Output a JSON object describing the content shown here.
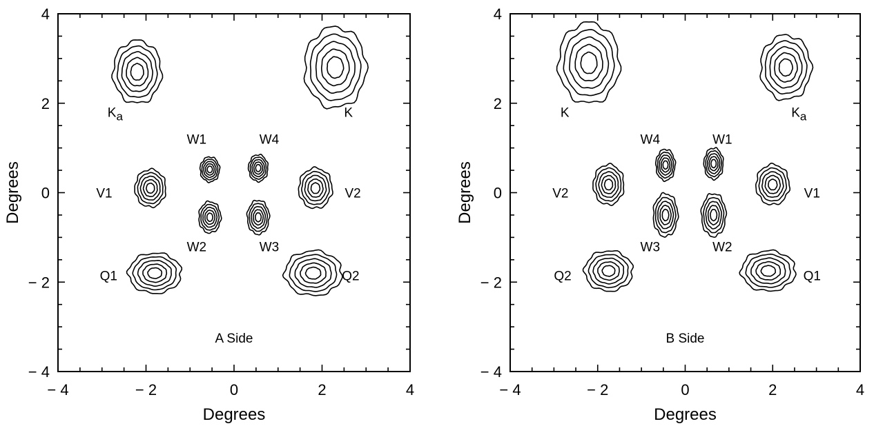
{
  "chart_data": [
    {
      "type": "contour",
      "side_label": "A Side",
      "xlabel": "Degrees",
      "ylabel": "Degrees",
      "xlim": [
        -4,
        4
      ],
      "ylim": [
        -4,
        4
      ],
      "x_ticks": [
        {
          "value": -4,
          "label": "− 4"
        },
        {
          "value": -2,
          "label": "− 2"
        },
        {
          "value": 0,
          "label": "0"
        },
        {
          "value": 2,
          "label": "2"
        },
        {
          "value": 4,
          "label": "4"
        }
      ],
      "y_ticks": [
        {
          "value": -4,
          "label": "− 4"
        },
        {
          "value": -2,
          "label": "− 2"
        },
        {
          "value": 0,
          "label": "0"
        },
        {
          "value": 2,
          "label": "2"
        },
        {
          "value": 4,
          "label": "4"
        }
      ],
      "beams": [
        {
          "name": "Ka",
          "label": "K",
          "subscript": "a",
          "x": -2.2,
          "y": 2.7,
          "rx": 0.55,
          "ry": 0.7,
          "rings": 5,
          "label_x": -2.7,
          "label_y": 1.8
        },
        {
          "name": "K",
          "label": "K",
          "x": 2.3,
          "y": 2.8,
          "rx": 0.7,
          "ry": 0.9,
          "rings": 5,
          "label_x": 2.6,
          "label_y": 1.8
        },
        {
          "name": "W1",
          "label": "W1",
          "x": -0.55,
          "y": 0.52,
          "rx": 0.22,
          "ry": 0.28,
          "rings": 5,
          "label_x": -0.85,
          "label_y": 1.2
        },
        {
          "name": "W4",
          "label": "W4",
          "x": 0.55,
          "y": 0.55,
          "rx": 0.22,
          "ry": 0.3,
          "rings": 5,
          "label_x": 0.8,
          "label_y": 1.2
        },
        {
          "name": "V1",
          "label": "V1",
          "x": -1.9,
          "y": 0.1,
          "rx": 0.35,
          "ry": 0.42,
          "rings": 5,
          "label_x": -2.95,
          "label_y": 0.0
        },
        {
          "name": "V2",
          "label": "V2",
          "x": 1.85,
          "y": 0.1,
          "rx": 0.38,
          "ry": 0.45,
          "rings": 5,
          "label_x": 2.7,
          "label_y": 0.0
        },
        {
          "name": "W2",
          "label": "W2",
          "x": -0.55,
          "y": -0.55,
          "rx": 0.25,
          "ry": 0.35,
          "rings": 5,
          "label_x": -0.85,
          "label_y": -1.2
        },
        {
          "name": "W3",
          "label": "W3",
          "x": 0.55,
          "y": -0.55,
          "rx": 0.25,
          "ry": 0.38,
          "rings": 5,
          "label_x": 0.8,
          "label_y": -1.2
        },
        {
          "name": "Q1",
          "label": "Q1",
          "x": -1.8,
          "y": -1.8,
          "rx": 0.6,
          "ry": 0.45,
          "rings": 5,
          "label_x": -2.85,
          "label_y": -1.85
        },
        {
          "name": "Q2",
          "label": "Q2",
          "x": 1.8,
          "y": -1.8,
          "rx": 0.65,
          "ry": 0.5,
          "rings": 5,
          "label_x": 2.65,
          "label_y": -1.85
        }
      ]
    },
    {
      "type": "contour",
      "side_label": "B Side",
      "xlabel": "Degrees",
      "ylabel": "Degrees",
      "xlim": [
        -4,
        4
      ],
      "ylim": [
        -4,
        4
      ],
      "x_ticks": [
        {
          "value": -4,
          "label": "− 4"
        },
        {
          "value": -2,
          "label": "− 2"
        },
        {
          "value": 0,
          "label": "0"
        },
        {
          "value": 2,
          "label": "2"
        },
        {
          "value": 4,
          "label": "4"
        }
      ],
      "y_ticks": [
        {
          "value": -4,
          "label": "− 4"
        },
        {
          "value": -2,
          "label": "− 2"
        },
        {
          "value": 0,
          "label": "0"
        },
        {
          "value": 2,
          "label": "2"
        },
        {
          "value": 4,
          "label": "4"
        }
      ],
      "beams": [
        {
          "name": "K",
          "label": "K",
          "x": -2.2,
          "y": 2.9,
          "rx": 0.7,
          "ry": 0.9,
          "rings": 5,
          "label_x": -2.75,
          "label_y": 1.8
        },
        {
          "name": "Ka",
          "label": "K",
          "subscript": "a",
          "x": 2.3,
          "y": 2.8,
          "rx": 0.58,
          "ry": 0.72,
          "rings": 5,
          "label_x": 2.6,
          "label_y": 1.8
        },
        {
          "name": "W4",
          "label": "W4",
          "x": -0.45,
          "y": 0.62,
          "rx": 0.22,
          "ry": 0.35,
          "rings": 5,
          "label_x": -0.8,
          "label_y": 1.2
        },
        {
          "name": "W1",
          "label": "W1",
          "x": 0.65,
          "y": 0.65,
          "rx": 0.22,
          "ry": 0.35,
          "rings": 5,
          "label_x": 0.85,
          "label_y": 1.2
        },
        {
          "name": "V2",
          "label": "V2",
          "x": -1.75,
          "y": 0.18,
          "rx": 0.35,
          "ry": 0.45,
          "rings": 5,
          "label_x": -2.85,
          "label_y": 0.0
        },
        {
          "name": "V1",
          "label": "V1",
          "x": 2.0,
          "y": 0.18,
          "rx": 0.38,
          "ry": 0.45,
          "rings": 5,
          "label_x": 2.9,
          "label_y": 0.0
        },
        {
          "name": "W3",
          "label": "W3",
          "x": -0.45,
          "y": -0.5,
          "rx": 0.28,
          "ry": 0.48,
          "rings": 5,
          "label_x": -0.8,
          "label_y": -1.2
        },
        {
          "name": "W2",
          "label": "W2",
          "x": 0.65,
          "y": -0.5,
          "rx": 0.28,
          "ry": 0.48,
          "rings": 5,
          "label_x": 0.85,
          "label_y": -1.2
        },
        {
          "name": "Q2",
          "label": "Q2",
          "x": -1.75,
          "y": -1.75,
          "rx": 0.55,
          "ry": 0.45,
          "rings": 5,
          "label_x": -2.8,
          "label_y": -1.85
        },
        {
          "name": "Q1",
          "label": "Q1",
          "x": 1.9,
          "y": -1.75,
          "rx": 0.62,
          "ry": 0.45,
          "rings": 5,
          "label_x": 2.9,
          "label_y": -1.85
        }
      ]
    }
  ]
}
